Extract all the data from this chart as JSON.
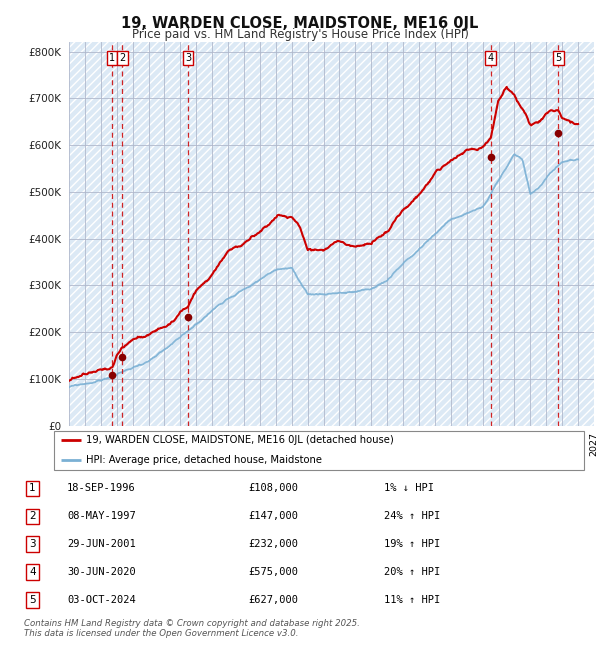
{
  "title": "19, WARDEN CLOSE, MAIDSTONE, ME16 0JL",
  "subtitle": "Price paid vs. HM Land Registry's House Price Index (HPI)",
  "title_fontsize": 10.5,
  "subtitle_fontsize": 8.5,
  "plot_bg_color": "#dce9f5",
  "transactions": [
    {
      "id": 1,
      "year": 1996.72,
      "price": 108000
    },
    {
      "id": 2,
      "year": 1997.36,
      "price": 147000
    },
    {
      "id": 3,
      "year": 2001.49,
      "price": 232000
    },
    {
      "id": 4,
      "year": 2020.5,
      "price": 575000
    },
    {
      "id": 5,
      "year": 2024.76,
      "price": 627000
    }
  ],
  "legend_label_red": "19, WARDEN CLOSE, MAIDSTONE, ME16 0JL (detached house)",
  "legend_label_blue": "HPI: Average price, detached house, Maidstone",
  "footer": "Contains HM Land Registry data © Crown copyright and database right 2025.\nThis data is licensed under the Open Government Licence v3.0.",
  "red_color": "#cc0000",
  "blue_color": "#7ab0d4",
  "marker_color": "#880000",
  "vline_color": "#cc0000",
  "grid_color": "#b0b8cc",
  "ylim": [
    0,
    820000
  ],
  "yticks": [
    0,
    100000,
    200000,
    300000,
    400000,
    500000,
    600000,
    700000,
    800000
  ],
  "ytick_labels": [
    "£0",
    "£100K",
    "£200K",
    "£300K",
    "£400K",
    "£500K",
    "£600K",
    "£700K",
    "£800K"
  ],
  "xlim_start": 1994,
  "xlim_end": 2027,
  "hpi_anchor_years": [
    1994,
    1995,
    1996,
    1997,
    1998,
    1999,
    2000,
    2001,
    2002,
    2003,
    2004,
    2005,
    2006,
    2007,
    2008,
    2009,
    2010,
    2011,
    2012,
    2013,
    2014,
    2015,
    2016,
    2017,
    2018,
    2019,
    2020,
    2021,
    2022,
    2022.5,
    2023,
    2023.5,
    2024,
    2025,
    2026
  ],
  "hpi_anchor_vals": [
    82000,
    88000,
    96000,
    108000,
    122000,
    137000,
    155000,
    178000,
    208000,
    238000,
    268000,
    290000,
    308000,
    330000,
    335000,
    270000,
    272000,
    278000,
    278000,
    282000,
    302000,
    335000,
    365000,
    400000,
    430000,
    445000,
    455000,
    510000,
    565000,
    555000,
    480000,
    490000,
    515000,
    550000,
    558000
  ],
  "red_anchor_years": [
    1994,
    1995,
    1996,
    1996.72,
    1997,
    1997.36,
    1998,
    1999,
    2000,
    2001,
    2001.49,
    2002,
    2003,
    2004,
    2005,
    2006,
    2007,
    2007.5,
    2008,
    2008.5,
    2009,
    2010,
    2011,
    2012,
    2013,
    2014,
    2015,
    2016,
    2017,
    2018,
    2019,
    2020,
    2020.5,
    2021,
    2021.5,
    2022,
    2022.3,
    2022.6,
    2023,
    2023.5,
    2024,
    2024.76,
    2025,
    2026
  ],
  "red_anchor_vals": [
    96000,
    98000,
    105000,
    108000,
    130000,
    147000,
    162000,
    178000,
    198000,
    225000,
    232000,
    268000,
    300000,
    340000,
    360000,
    380000,
    415000,
    418000,
    415000,
    395000,
    345000,
    355000,
    370000,
    360000,
    365000,
    385000,
    420000,
    455000,
    500000,
    530000,
    550000,
    560000,
    575000,
    660000,
    690000,
    670000,
    650000,
    630000,
    600000,
    605000,
    620000,
    627000,
    610000,
    600000
  ],
  "table_rows": [
    [
      1,
      "18-SEP-1996",
      "£108,000",
      "1% ↓ HPI"
    ],
    [
      2,
      "08-MAY-1997",
      "£147,000",
      "24% ↑ HPI"
    ],
    [
      3,
      "29-JUN-2001",
      "£232,000",
      "19% ↑ HPI"
    ],
    [
      4,
      "30-JUN-2020",
      "£575,000",
      "20% ↑ HPI"
    ],
    [
      5,
      "03-OCT-2024",
      "£627,000",
      "11% ↑ HPI"
    ]
  ]
}
